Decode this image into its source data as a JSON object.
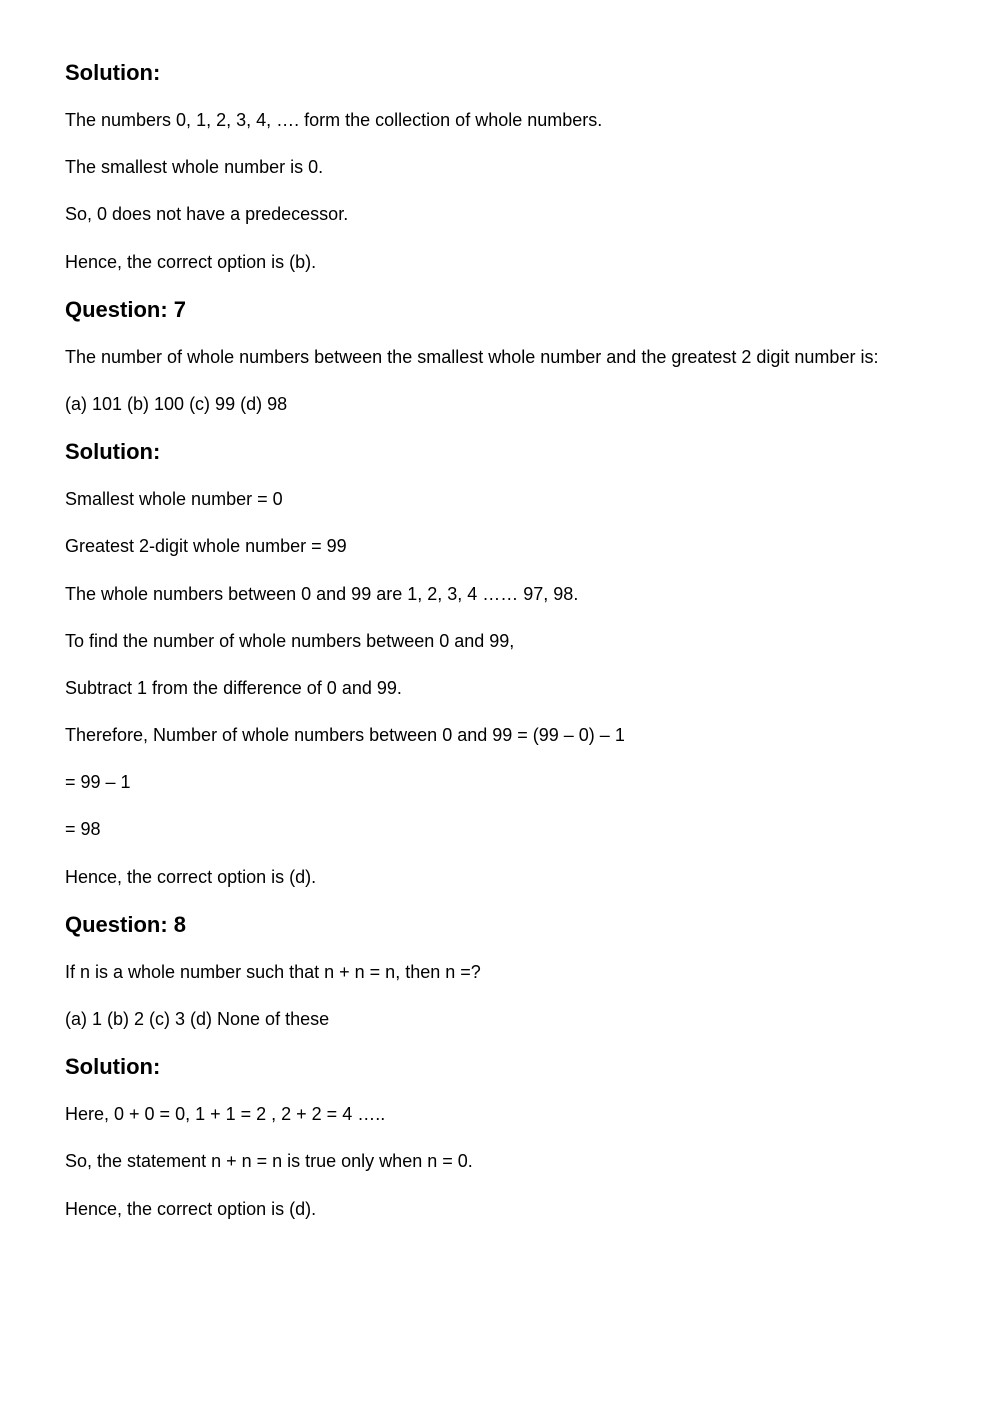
{
  "doc": {
    "font_family": "Verdana, Geneva, sans-serif",
    "background_color": "#ffffff",
    "text_color": "#000000",
    "heading_fontsize": 22,
    "body_fontsize": 18
  },
  "sol6": {
    "heading": "Solution:",
    "p1": "The numbers 0, 1, 2, 3, 4, …. form the collection of whole numbers.",
    "p2": "The smallest whole number is 0.",
    "p3": "So, 0 does not have a predecessor.",
    "p4": "Hence, the correct option is (b)."
  },
  "q7": {
    "heading": "Question: 7",
    "text": "The number of whole numbers between the smallest whole number and the greatest 2 digit number is:",
    "options": "(a) 101 (b) 100  (c) 99 (d) 98"
  },
  "sol7": {
    "heading": "Solution:",
    "p1": "Smallest whole number = 0",
    "p2": "Greatest 2-digit whole number = 99",
    "p3": "The whole numbers between 0 and 99 are 1, 2, 3, 4 …… 97, 98.",
    "p4": "To find the number of whole numbers between 0 and 99,",
    "p5": "Subtract 1 from the difference of 0 and 99.",
    "p6": "Therefore, Number of whole numbers between 0 and 99 = (99 – 0) – 1",
    "p7": "= 99 – 1",
    "p8": "= 98",
    "p9": "Hence, the correct option is (d)."
  },
  "q8": {
    "heading": "Question: 8",
    "text": "If n is a whole number such that n + n = n, then n =?",
    "options": "(a) 1 (b) 2 (c) 3 (d) None of these"
  },
  "sol8": {
    "heading": "Solution:",
    "p1": "Here, 0 + 0 = 0, 1 + 1 = 2 , 2 + 2 = 4 …..",
    "p2": "So, the statement n + n = n is true only when n = 0.",
    "p3": "Hence, the correct option is (d)."
  }
}
